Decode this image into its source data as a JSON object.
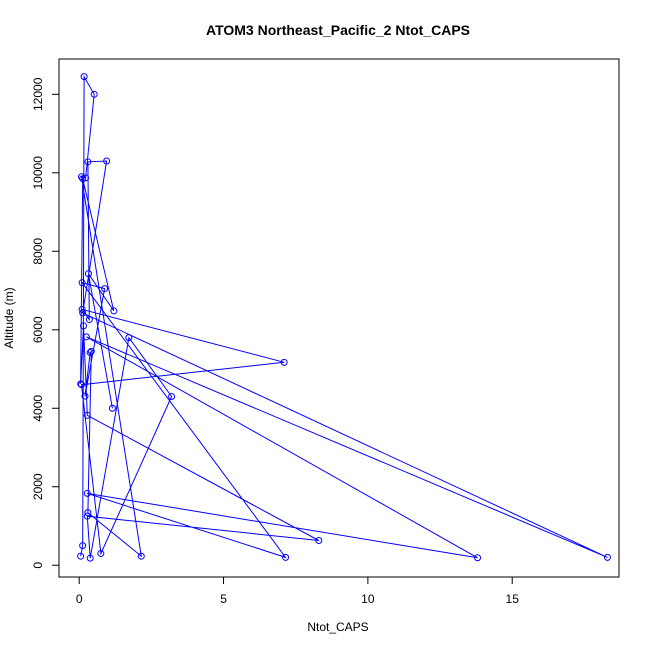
{
  "chart_data": {
    "type": "line",
    "title": "ATOM3 Northeast_Pacific_2 Ntot_CAPS",
    "xlabel": "Ntot_CAPS",
    "ylabel": "Altitude (m)",
    "xlim": [
      -0.7,
      18.7
    ],
    "ylim": [
      -300,
      12900
    ],
    "xticks": [
      0,
      5,
      10,
      15
    ],
    "yticks": [
      0,
      2000,
      4000,
      6000,
      8000,
      10000,
      12000
    ],
    "series_color": "#0000ff",
    "markers": "open-circle",
    "grid": false,
    "legend": "none",
    "series": [
      {
        "x": [
          0.05,
          0.12,
          0.17,
          0.52,
          0.22,
          0.08,
          2.15,
          0.3,
          0.42,
          0.38,
          0.2,
          0.88,
          0.1,
          7.15,
          0.28,
          13.8,
          0.25,
          18.3,
          0.12,
          0.95,
          0.3,
          0.35,
          0.1,
          7.1,
          0.08,
          0.75,
          3.2,
          1.72,
          0.38,
          0.28,
          8.3,
          0.28,
          0.15,
          0.05,
          0.12,
          1.2,
          0.32,
          1.15
        ],
        "y": [
          230,
          500,
          12450,
          12000,
          9870,
          9900,
          230,
          1340,
          5450,
          5420,
          4310,
          7050,
          7200,
          200,
          1830,
          190,
          5820,
          200,
          6430,
          10300,
          10280,
          6260,
          6520,
          5170,
          4600,
          300,
          4300,
          5800,
          180,
          1250,
          630,
          3820,
          6100,
          4620,
          9850,
          6480,
          7430,
          4000
        ]
      }
    ]
  }
}
